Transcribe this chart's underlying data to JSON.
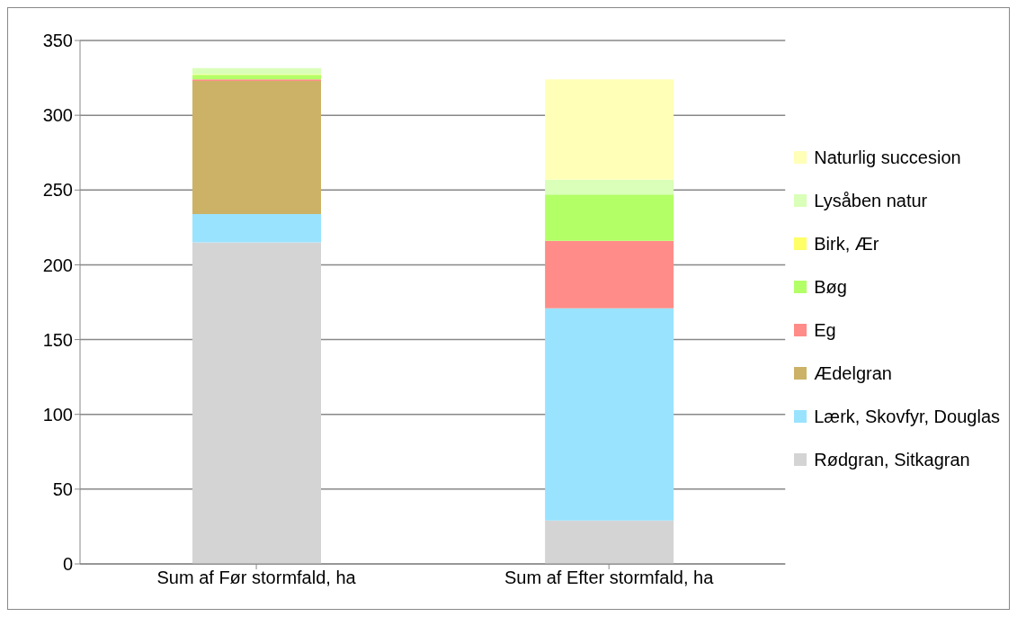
{
  "chart_data": {
    "type": "bar",
    "stacked": true,
    "categories": [
      "Sum af Før stormfald, ha",
      "Sum af Efter stormfald, ha"
    ],
    "series": [
      {
        "name": "Rødgran, Sitkagran",
        "color": "#d4d4d4",
        "values": [
          215,
          29
        ]
      },
      {
        "name": "Lærk, Skovfyr, Douglas",
        "color": "#99e3ff",
        "values": [
          19,
          142
        ]
      },
      {
        "name": "Ædelgran",
        "color": "#ccb266",
        "values": [
          89,
          0
        ]
      },
      {
        "name": "Eg",
        "color": "#ff8c88",
        "values": [
          1,
          45
        ]
      },
      {
        "name": "Bøg",
        "color": "#b3ff66",
        "values": [
          3,
          31
        ]
      },
      {
        "name": "Birk, Ær",
        "color": "#ffff66",
        "values": [
          0.5,
          0
        ]
      },
      {
        "name": "Lysåben natur",
        "color": "#d9ffb8",
        "values": [
          4,
          10
        ]
      },
      {
        "name": "Naturlig succesion",
        "color": "#ffffb8",
        "values": [
          0,
          67
        ]
      }
    ],
    "ylim": [
      0,
      350
    ],
    "yticks": [
      0,
      50,
      100,
      150,
      200,
      250,
      300,
      350
    ],
    "grid": "y",
    "legend": "right"
  }
}
